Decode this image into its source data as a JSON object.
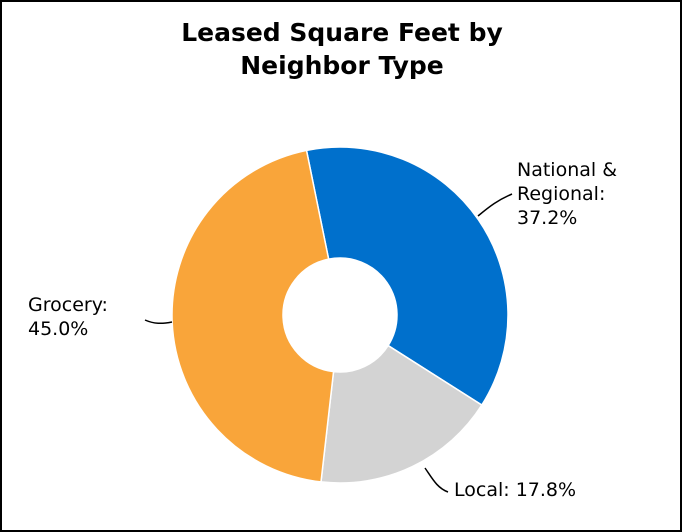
{
  "chart_data": {
    "type": "donut",
    "title": "Leased Square Feet by Neighbor Type",
    "categories": [
      "National & Regional:",
      "Local:",
      "Grocery:"
    ],
    "values": [
      37.2,
      17.8,
      45.0
    ],
    "value_labels": [
      "37.2%",
      "17.8%",
      "45.0%"
    ],
    "colors": [
      "#0070cc",
      "#d3d3d3",
      "#f9a53a"
    ]
  }
}
